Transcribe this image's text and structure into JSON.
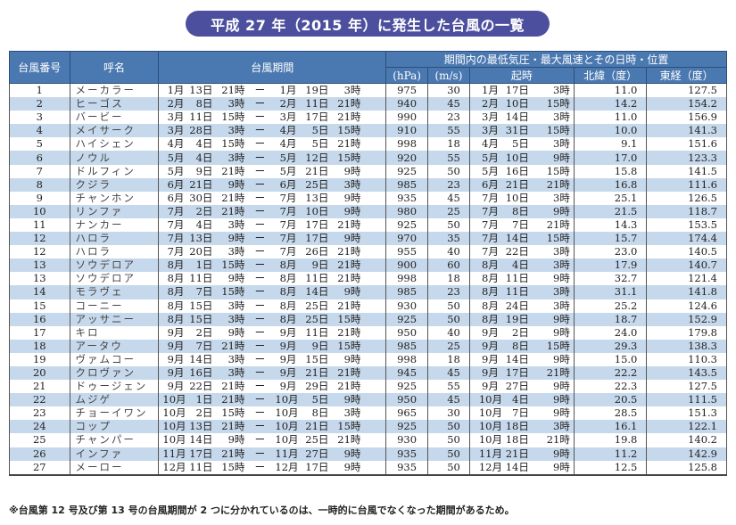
{
  "title": "平成 27 年（2015 年）に発生した台風の一覧",
  "headers": {
    "number": "台風番号",
    "name": "呼名",
    "period": "台風期間",
    "group": "期間内の最低気圧・最大風速とその日時・位置",
    "hpa": "(hPa)",
    "ms": "(m/s)",
    "time": "起時",
    "lat": "北緯（度）",
    "lon": "東経（度）"
  },
  "colors": {
    "title_bg": "#4b4f9d",
    "header_bg": "#4a78b0",
    "row_alt": "#c6d8eb"
  },
  "rows": [
    [
      "1",
      "メーカラー",
      "1月",
      "13日",
      "21時",
      "ー",
      "1月",
      "19日",
      "3時",
      "975",
      "30",
      "1月",
      "17日",
      "3時",
      "11.0",
      "127.5"
    ],
    [
      "2",
      "ヒーゴス",
      "2月",
      "8日",
      "3時",
      "ー",
      "2月",
      "11日",
      "21時",
      "940",
      "45",
      "2月",
      "10日",
      "15時",
      "14.2",
      "154.2"
    ],
    [
      "3",
      "バービー",
      "3月",
      "11日",
      "15時",
      "ー",
      "3月",
      "17日",
      "21時",
      "990",
      "23",
      "3月",
      "14日",
      "3時",
      "11.0",
      "156.9"
    ],
    [
      "4",
      "メイサーク",
      "3月",
      "28日",
      "3時",
      "ー",
      "4月",
      "5日",
      "15時",
      "910",
      "55",
      "3月",
      "31日",
      "15時",
      "10.0",
      "141.3"
    ],
    [
      "5",
      "ハイシェン",
      "4月",
      "4日",
      "15時",
      "ー",
      "4月",
      "5日",
      "21時",
      "998",
      "18",
      "4月",
      "5日",
      "3時",
      "9.1",
      "151.6"
    ],
    [
      "6",
      "ノウル",
      "5月",
      "4日",
      "3時",
      "ー",
      "5月",
      "12日",
      "15時",
      "920",
      "55",
      "5月",
      "10日",
      "9時",
      "17.0",
      "123.3"
    ],
    [
      "7",
      "ドルフィン",
      "5月",
      "9日",
      "21時",
      "ー",
      "5月",
      "21日",
      "9時",
      "925",
      "50",
      "5月",
      "16日",
      "15時",
      "15.8",
      "141.5"
    ],
    [
      "8",
      "クジラ",
      "6月",
      "21日",
      "9時",
      "ー",
      "6月",
      "25日",
      "3時",
      "985",
      "23",
      "6月",
      "21日",
      "21時",
      "16.8",
      "111.6"
    ],
    [
      "9",
      "チャンホン",
      "6月",
      "30日",
      "21時",
      "ー",
      "7月",
      "13日",
      "9時",
      "935",
      "45",
      "7月",
      "10日",
      "3時",
      "25.1",
      "126.5"
    ],
    [
      "10",
      "リンファ",
      "7月",
      "2日",
      "21時",
      "ー",
      "7月",
      "10日",
      "9時",
      "980",
      "25",
      "7月",
      "8日",
      "9時",
      "21.5",
      "118.7"
    ],
    [
      "11",
      "ナンカー",
      "7月",
      "4日",
      "3時",
      "ー",
      "7月",
      "17日",
      "21時",
      "925",
      "50",
      "7月",
      "7日",
      "21時",
      "14.3",
      "153.5"
    ],
    [
      "12",
      "ハロラ",
      "7月",
      "13日",
      "9時",
      "ー",
      "7月",
      "17日",
      "9時",
      "970",
      "35",
      "7月",
      "14日",
      "15時",
      "15.7",
      "174.4"
    ],
    [
      "12",
      "ハロラ",
      "7月",
      "20日",
      "3時",
      "ー",
      "7月",
      "26日",
      "21時",
      "955",
      "40",
      "7月",
      "22日",
      "3時",
      "23.0",
      "140.5"
    ],
    [
      "13",
      "ソウデロア",
      "8月",
      "1日",
      "15時",
      "ー",
      "8月",
      "9日",
      "21時",
      "900",
      "60",
      "8月",
      "4日",
      "3時",
      "17.9",
      "140.7"
    ],
    [
      "13",
      "ソウデロア",
      "8月",
      "11日",
      "9時",
      "ー",
      "8月",
      "11日",
      "21時",
      "998",
      "18",
      "8月",
      "11日",
      "9時",
      "32.7",
      "121.4"
    ],
    [
      "14",
      "モラヴェ",
      "8月",
      "7日",
      "15時",
      "ー",
      "8月",
      "14日",
      "9時",
      "985",
      "23",
      "8月",
      "11日",
      "3時",
      "31.1",
      "141.8"
    ],
    [
      "15",
      "コーニー",
      "8月",
      "15日",
      "3時",
      "ー",
      "8月",
      "25日",
      "21時",
      "930",
      "50",
      "8月",
      "24日",
      "3時",
      "25.2",
      "124.6"
    ],
    [
      "16",
      "アッサニー",
      "8月",
      "15日",
      "3時",
      "ー",
      "8月",
      "25日",
      "15時",
      "925",
      "50",
      "8月",
      "19日",
      "9時",
      "18.7",
      "152.9"
    ],
    [
      "17",
      "キロ",
      "9月",
      "2日",
      "9時",
      "ー",
      "9月",
      "11日",
      "21時",
      "950",
      "40",
      "9月",
      "2日",
      "9時",
      "24.0",
      "179.8"
    ],
    [
      "18",
      "アータウ",
      "9月",
      "7日",
      "21時",
      "ー",
      "9月",
      "9日",
      "15時",
      "985",
      "25",
      "9月",
      "8日",
      "15時",
      "29.3",
      "138.3"
    ],
    [
      "19",
      "ヴァムコー",
      "9月",
      "14日",
      "3時",
      "ー",
      "9月",
      "15日",
      "9時",
      "998",
      "18",
      "9月",
      "14日",
      "9時",
      "15.0",
      "110.3"
    ],
    [
      "20",
      "クロヴァン",
      "9月",
      "16日",
      "3時",
      "ー",
      "9月",
      "21日",
      "21時",
      "945",
      "45",
      "9月",
      "17日",
      "21時",
      "22.2",
      "143.5"
    ],
    [
      "21",
      "ドゥージェン",
      "9月",
      "22日",
      "21時",
      "ー",
      "9月",
      "29日",
      "21時",
      "925",
      "55",
      "9月",
      "27日",
      "9時",
      "22.3",
      "127.5"
    ],
    [
      "22",
      "ムジゲ",
      "10月",
      "1日",
      "21時",
      "ー",
      "10月",
      "5日",
      "9時",
      "950",
      "45",
      "10月",
      "4日",
      "9時",
      "20.5",
      "111.5"
    ],
    [
      "23",
      "チョーイワン",
      "10月",
      "2日",
      "15時",
      "ー",
      "10月",
      "8日",
      "3時",
      "965",
      "30",
      "10月",
      "7日",
      "9時",
      "28.5",
      "151.3"
    ],
    [
      "24",
      "コップ",
      "10月",
      "13日",
      "21時",
      "ー",
      "10月",
      "21日",
      "15時",
      "925",
      "50",
      "10月",
      "18日",
      "3時",
      "16.1",
      "122.1"
    ],
    [
      "25",
      "チャンパー",
      "10月",
      "14日",
      "9時",
      "ー",
      "10月",
      "25日",
      "21時",
      "930",
      "50",
      "10月",
      "18日",
      "21時",
      "19.8",
      "140.2"
    ],
    [
      "26",
      "インファ",
      "11月",
      "17日",
      "21時",
      "ー",
      "11月",
      "27日",
      "9時",
      "935",
      "50",
      "11月",
      "21日",
      "9時",
      "11.2",
      "142.9"
    ],
    [
      "27",
      "メーロー",
      "12月",
      "11日",
      "15時",
      "ー",
      "12月",
      "17日",
      "9時",
      "935",
      "50",
      "12月",
      "14日",
      "9時",
      "12.5",
      "125.8"
    ]
  ],
  "note": "※台風第 12 号及び第 13 号の台風期間が 2 つに分かれているのは、一時的に台風でなくなった期間があるため。"
}
